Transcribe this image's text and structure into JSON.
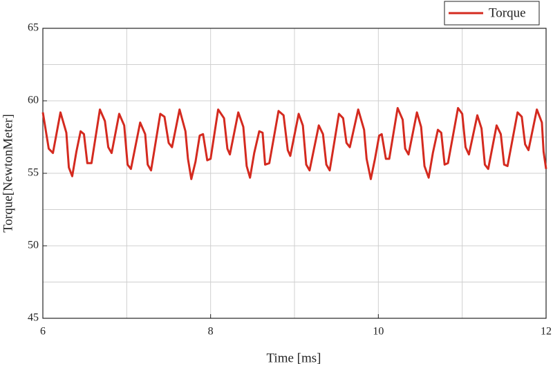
{
  "chart_data": {
    "type": "line",
    "xlabel": "Time [ms]",
    "ylabel": "Torque[NewtonMeter]",
    "x": [
      6.0,
      6.07,
      6.12,
      6.21,
      6.28,
      6.31,
      6.35,
      6.4,
      6.45,
      6.49,
      6.53,
      6.58,
      6.68,
      6.74,
      6.78,
      6.82,
      6.91,
      6.97,
      7.01,
      7.05,
      7.16,
      7.22,
      7.25,
      7.29,
      7.4,
      7.45,
      7.5,
      7.54,
      7.63,
      7.7,
      7.73,
      7.77,
      7.82,
      7.87,
      7.91,
      7.96,
      8.0,
      8.09,
      8.16,
      8.2,
      8.23,
      8.33,
      8.39,
      8.43,
      8.47,
      8.52,
      8.58,
      8.62,
      8.65,
      8.7,
      8.81,
      8.87,
      8.92,
      8.95,
      9.05,
      9.1,
      9.14,
      9.18,
      9.29,
      9.34,
      9.38,
      9.42,
      9.53,
      9.58,
      9.62,
      9.66,
      9.76,
      9.83,
      9.86,
      9.91,
      9.96,
      10.01,
      10.04,
      10.09,
      10.13,
      10.23,
      10.29,
      10.32,
      10.36,
      10.46,
      10.51,
      10.55,
      10.6,
      10.65,
      10.71,
      10.75,
      10.79,
      10.83,
      10.95,
      11.0,
      11.04,
      11.08,
      11.18,
      11.23,
      11.27,
      11.31,
      11.41,
      11.46,
      11.5,
      11.54,
      11.66,
      11.71,
      11.75,
      11.79,
      11.89,
      11.95,
      11.97,
      12.0
    ],
    "series": [
      {
        "name": "Torque",
        "color": "#d42a1f",
        "values": [
          59.2,
          56.7,
          56.4,
          59.2,
          57.8,
          55.4,
          54.8,
          56.5,
          57.9,
          57.7,
          55.7,
          55.7,
          59.4,
          58.6,
          56.8,
          56.4,
          59.1,
          58.3,
          55.6,
          55.3,
          58.5,
          57.7,
          55.6,
          55.2,
          59.1,
          58.9,
          57.1,
          56.8,
          59.4,
          57.9,
          56.0,
          54.6,
          55.8,
          57.6,
          57.7,
          55.9,
          56.0,
          59.4,
          58.8,
          56.7,
          56.3,
          59.2,
          58.2,
          55.5,
          54.7,
          56.4,
          57.9,
          57.8,
          55.6,
          55.7,
          59.3,
          59.0,
          56.6,
          56.2,
          59.1,
          58.3,
          55.6,
          55.2,
          58.3,
          57.7,
          55.6,
          55.2,
          59.1,
          58.8,
          57.1,
          56.8,
          59.4,
          58.0,
          56.0,
          54.6,
          56.0,
          57.6,
          57.7,
          56.0,
          56.0,
          59.5,
          58.7,
          56.7,
          56.3,
          59.2,
          58.2,
          55.5,
          54.7,
          56.4,
          58.0,
          57.8,
          55.6,
          55.7,
          59.5,
          59.1,
          56.8,
          56.3,
          59.0,
          58.1,
          55.6,
          55.3,
          58.3,
          57.7,
          55.6,
          55.5,
          59.2,
          58.9,
          57.0,
          56.6,
          59.4,
          58.5,
          56.5,
          55.3
        ]
      }
    ],
    "xlim": [
      6,
      12
    ],
    "xticks": [
      6,
      8,
      10,
      12
    ],
    "x_minor_grid": [
      7,
      9,
      11
    ],
    "ylim": [
      45,
      65
    ],
    "yticks": [
      45,
      50,
      55,
      60,
      65
    ],
    "y_minor_grid": [
      47.5,
      52.5,
      57.5,
      62.5
    ],
    "grid": true,
    "legend": "top-right"
  }
}
